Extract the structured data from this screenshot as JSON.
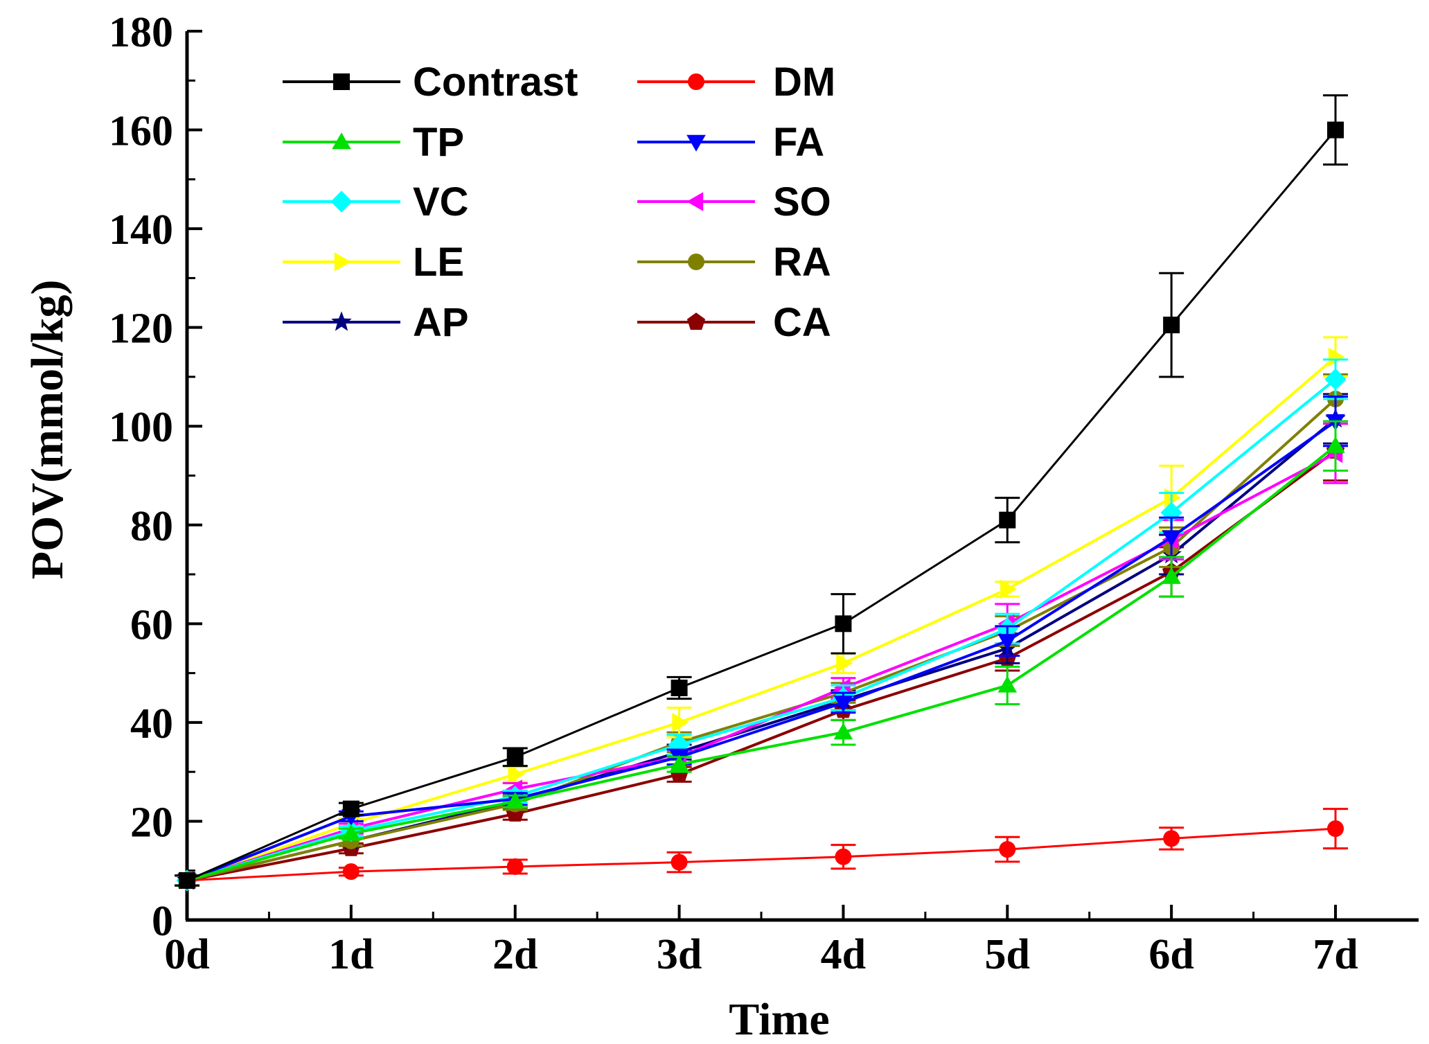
{
  "chart_data": {
    "type": "line",
    "title": "",
    "xlabel": "Time",
    "ylabel": "POV(mmol/kg)",
    "categories": [
      "0d",
      "1d",
      "2d",
      "3d",
      "4d",
      "5d",
      "6d",
      "7d"
    ],
    "ylim": [
      0,
      180
    ],
    "yticks": [
      "0",
      "20",
      "40",
      "60",
      "80",
      "100",
      "120",
      "140",
      "160",
      "180"
    ],
    "legend_position": "top-left",
    "series": [
      {
        "name": "Contrast",
        "color": "#000000",
        "marker": "square",
        "values": [
          8,
          22.5,
          33,
          47,
          60,
          81,
          120.5,
          160
        ],
        "errors": [
          1,
          1.2,
          1.8,
          2.2,
          6,
          4.5,
          10.5,
          7
        ]
      },
      {
        "name": "DM",
        "color": "#ff0000",
        "marker": "circle",
        "values": [
          8,
          9.8,
          10.8,
          11.7,
          12.8,
          14.3,
          16.5,
          18.5
        ],
        "errors": [
          1,
          0.8,
          1.4,
          2,
          2.4,
          2.5,
          2.2,
          4
        ]
      },
      {
        "name": "TP",
        "color": "#00e000",
        "marker": "triangle-up",
        "values": [
          8,
          17.5,
          24,
          31.5,
          38,
          47.5,
          69.5,
          96
        ],
        "errors": [
          1,
          1,
          1.2,
          1.5,
          2.5,
          3.8,
          4,
          5
        ]
      },
      {
        "name": "FA",
        "color": "#0000ff",
        "marker": "triangle-down",
        "values": [
          8,
          21,
          24.5,
          33,
          44,
          56.5,
          77.5,
          101
        ],
        "errors": [
          1,
          1,
          1.2,
          1.5,
          2,
          3,
          4,
          5
        ]
      },
      {
        "name": "VC",
        "color": "#00ffff",
        "marker": "diamond",
        "values": [
          8,
          18,
          25,
          35.5,
          45,
          59,
          82.5,
          109.5
        ],
        "errors": [
          1,
          1,
          1.2,
          2,
          2.5,
          3,
          4,
          4
        ]
      },
      {
        "name": "SO",
        "color": "#ff00ff",
        "marker": "triangle-left",
        "values": [
          8,
          18.5,
          26.5,
          33,
          47,
          60,
          77,
          94.5
        ],
        "errors": [
          1,
          1,
          1.2,
          1.5,
          2,
          4,
          4,
          6
        ]
      },
      {
        "name": "LE",
        "color": "#ffff00",
        "marker": "triangle-right",
        "values": [
          8,
          19.5,
          29.5,
          40,
          52,
          67,
          85.5,
          114
        ],
        "errors": [
          1,
          1,
          1.5,
          3,
          2,
          1.5,
          6.5,
          4
        ]
      },
      {
        "name": "RA",
        "color": "#808000",
        "marker": "circle",
        "values": [
          8,
          16,
          23.5,
          36,
          46,
          58.5,
          75.5,
          105.5
        ],
        "errors": [
          1,
          1,
          1.2,
          2,
          2,
          3,
          4,
          5
        ]
      },
      {
        "name": "AP",
        "color": "#00007f",
        "marker": "star",
        "values": [
          8,
          16,
          24,
          34,
          44.5,
          55,
          74,
          101.5
        ],
        "errors": [
          1,
          1,
          1.2,
          1.5,
          2,
          3,
          4,
          5
        ]
      },
      {
        "name": "CA",
        "color": "#8b0000",
        "marker": "pentagon",
        "values": [
          8,
          14.5,
          21.5,
          29.5,
          42.5,
          53,
          70.5,
          95
        ],
        "errors": [
          1,
          1,
          1.2,
          1.5,
          2,
          2.5,
          5,
          6
        ]
      }
    ]
  }
}
